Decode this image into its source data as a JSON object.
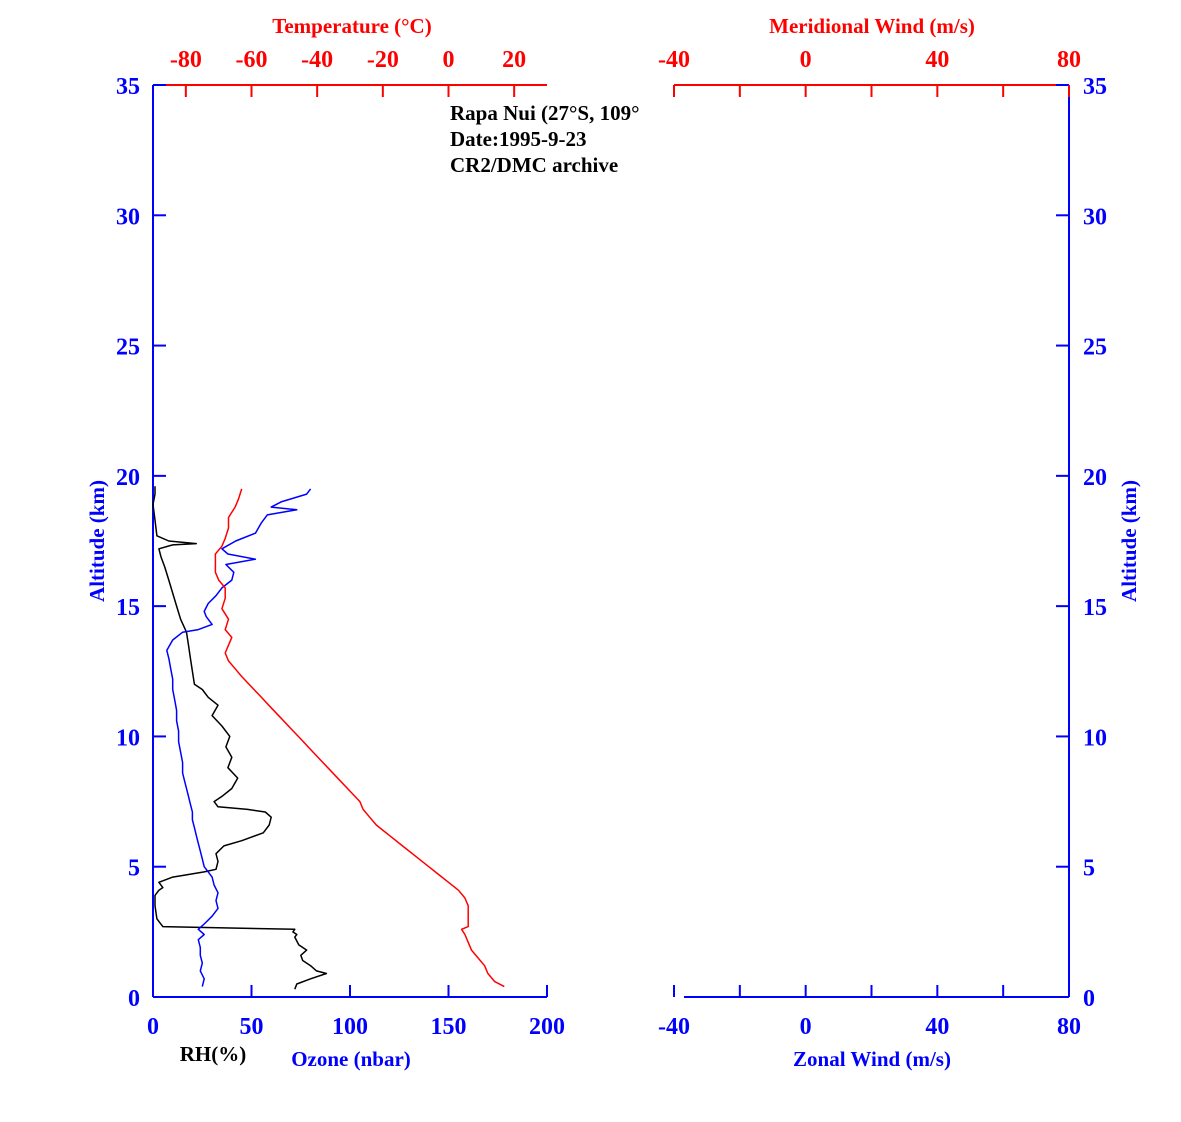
{
  "chart_data": [
    {
      "type": "line",
      "panel": "left",
      "annotation": [
        "Rapa Nui (27°S, 109°",
        "Date:1995-9-23",
        "CR2/DMC archive"
      ],
      "y_axis": {
        "label": "Altitude (km)",
        "range": [
          0,
          35
        ],
        "ticks": [
          0,
          5,
          10,
          15,
          20,
          25,
          30,
          35
        ]
      },
      "x_bottom": {
        "label_rh": "RH(%)",
        "label_ozone": "Ozone (nbar)",
        "range": [
          0,
          200
        ],
        "ticks": [
          0,
          50,
          100,
          150,
          200
        ]
      },
      "x_top": {
        "label": "Temperature (°C)",
        "range": [
          -90,
          30
        ],
        "ticks": [
          -80,
          -60,
          -40,
          -20,
          0,
          20
        ]
      },
      "series": [
        {
          "name": "RH(%)",
          "axis": "bottom",
          "color": "#000000",
          "points": [
            [
              72,
              0.3
            ],
            [
              73,
              0.5
            ],
            [
              80,
              0.7
            ],
            [
              88,
              0.9
            ],
            [
              83,
              1.0
            ],
            [
              80,
              1.2
            ],
            [
              76,
              1.4
            ],
            [
              75,
              1.6
            ],
            [
              78,
              1.8
            ],
            [
              74,
              2.0
            ],
            [
              72,
              2.3
            ],
            [
              73,
              2.4
            ],
            [
              71,
              2.5
            ],
            [
              72,
              2.6
            ],
            [
              36,
              2.65
            ],
            [
              5,
              2.7
            ],
            [
              2,
              3.0
            ],
            [
              1,
              3.5
            ],
            [
              1,
              3.9
            ],
            [
              3,
              4.1
            ],
            [
              5,
              4.2
            ],
            [
              3,
              4.4
            ],
            [
              10,
              4.6
            ],
            [
              18,
              4.7
            ],
            [
              26,
              4.8
            ],
            [
              32,
              4.9
            ],
            [
              33,
              5.2
            ],
            [
              32,
              5.5
            ],
            [
              36,
              5.8
            ],
            [
              45,
              6.0
            ],
            [
              56,
              6.3
            ],
            [
              59,
              6.6
            ],
            [
              60,
              6.9
            ],
            [
              57,
              7.1
            ],
            [
              48,
              7.2
            ],
            [
              33,
              7.3
            ],
            [
              31,
              7.5
            ],
            [
              35,
              7.7
            ],
            [
              40,
              8.0
            ],
            [
              43,
              8.4
            ],
            [
              38,
              8.8
            ],
            [
              40,
              9.2
            ],
            [
              37,
              9.6
            ],
            [
              39,
              10.0
            ],
            [
              35,
              10.4
            ],
            [
              30,
              10.8
            ],
            [
              33,
              11.2
            ],
            [
              28,
              11.5
            ],
            [
              25,
              11.8
            ],
            [
              21,
              12.0
            ],
            [
              20,
              12.5
            ],
            [
              19,
              13.0
            ],
            [
              18,
              13.5
            ],
            [
              17,
              14.0
            ],
            [
              14,
              14.5
            ],
            [
              12,
              15.0
            ],
            [
              10,
              15.5
            ],
            [
              8,
              16.0
            ],
            [
              6,
              16.5
            ],
            [
              4,
              16.9
            ],
            [
              3,
              17.2
            ],
            [
              10,
              17.35
            ],
            [
              22,
              17.4
            ],
            [
              8,
              17.5
            ],
            [
              2,
              17.7
            ],
            [
              1,
              18.3
            ],
            [
              0,
              18.9
            ],
            [
              1,
              19.3
            ],
            [
              1,
              19.6
            ]
          ]
        },
        {
          "name": "Ozone (nbar)",
          "axis": "bottom",
          "color": "#0000ff",
          "points": [
            [
              25,
              0.4
            ],
            [
              26,
              0.7
            ],
            [
              24,
              1.0
            ],
            [
              25,
              1.3
            ],
            [
              24,
              1.6
            ],
            [
              24,
              1.9
            ],
            [
              23,
              2.2
            ],
            [
              26,
              2.4
            ],
            [
              23,
              2.6
            ],
            [
              26,
              2.8
            ],
            [
              30,
              3.1
            ],
            [
              33,
              3.4
            ],
            [
              32,
              3.7
            ],
            [
              33,
              4.0
            ],
            [
              31,
              4.3
            ],
            [
              30,
              4.6
            ],
            [
              28,
              4.8
            ],
            [
              26,
              5.0
            ],
            [
              25,
              5.3
            ],
            [
              24,
              5.6
            ],
            [
              23,
              5.9
            ],
            [
              22,
              6.2
            ],
            [
              21,
              6.5
            ],
            [
              20,
              6.8
            ],
            [
              20,
              7.1
            ],
            [
              19,
              7.4
            ],
            [
              18,
              7.7
            ],
            [
              17,
              8.0
            ],
            [
              16,
              8.3
            ],
            [
              15,
              8.6
            ],
            [
              15,
              9.0
            ],
            [
              14,
              9.4
            ],
            [
              13,
              9.8
            ],
            [
              13,
              10.2
            ],
            [
              12,
              10.6
            ],
            [
              12,
              11.0
            ],
            [
              11,
              11.4
            ],
            [
              10,
              11.8
            ],
            [
              10,
              12.2
            ],
            [
              9,
              12.6
            ],
            [
              8,
              13.0
            ],
            [
              7,
              13.3
            ],
            [
              10,
              13.7
            ],
            [
              15,
              14.0
            ],
            [
              23,
              14.1
            ],
            [
              30,
              14.3
            ],
            [
              27,
              14.6
            ],
            [
              26,
              14.8
            ],
            [
              28,
              15.1
            ],
            [
              32,
              15.4
            ],
            [
              35,
              15.7
            ],
            [
              40,
              16.0
            ],
            [
              41,
              16.3
            ],
            [
              37,
              16.6
            ],
            [
              52,
              16.8
            ],
            [
              38,
              17.0
            ],
            [
              35,
              17.2
            ],
            [
              42,
              17.5
            ],
            [
              52,
              17.8
            ],
            [
              55,
              18.2
            ],
            [
              58,
              18.5
            ],
            [
              73,
              18.7
            ],
            [
              60,
              18.8
            ],
            [
              65,
              19.0
            ],
            [
              78,
              19.3
            ],
            [
              80,
              19.5
            ]
          ]
        },
        {
          "name": "Temperature (°C)",
          "axis": "top",
          "color": "#ff0000",
          "points": [
            [
              17,
              0.4
            ],
            [
              14,
              0.6
            ],
            [
              12,
              0.9
            ],
            [
              11,
              1.2
            ],
            [
              9,
              1.5
            ],
            [
              7,
              1.8
            ],
            [
              6,
              2.1
            ],
            [
              5,
              2.4
            ],
            [
              4,
              2.6
            ],
            [
              6,
              2.7
            ],
            [
              6,
              3.1
            ],
            [
              6,
              3.5
            ],
            [
              5,
              3.8
            ],
            [
              3,
              4.1
            ],
            [
              0,
              4.4
            ],
            [
              -3,
              4.7
            ],
            [
              -6,
              5.0
            ],
            [
              -10,
              5.4
            ],
            [
              -14,
              5.8
            ],
            [
              -18,
              6.2
            ],
            [
              -22,
              6.6
            ],
            [
              -24,
              6.9
            ],
            [
              -26,
              7.2
            ],
            [
              -27,
              7.5
            ],
            [
              -30,
              7.9
            ],
            [
              -33,
              8.3
            ],
            [
              -36,
              8.7
            ],
            [
              -39,
              9.1
            ],
            [
              -42,
              9.5
            ],
            [
              -45,
              9.9
            ],
            [
              -48,
              10.3
            ],
            [
              -51,
              10.7
            ],
            [
              -54,
              11.1
            ],
            [
              -57,
              11.5
            ],
            [
              -60,
              11.9
            ],
            [
              -63,
              12.3
            ],
            [
              -65,
              12.6
            ],
            [
              -67,
              12.9
            ],
            [
              -68,
              13.2
            ],
            [
              -67,
              13.5
            ],
            [
              -66,
              13.8
            ],
            [
              -68,
              14.1
            ],
            [
              -67,
              14.5
            ],
            [
              -69,
              14.9
            ],
            [
              -68,
              15.3
            ],
            [
              -68,
              15.7
            ],
            [
              -70,
              16.0
            ],
            [
              -71,
              16.3
            ],
            [
              -71,
              16.7
            ],
            [
              -71,
              17.0
            ],
            [
              -69,
              17.3
            ],
            [
              -68,
              17.6
            ],
            [
              -67,
              18.0
            ],
            [
              -67,
              18.4
            ],
            [
              -65,
              18.8
            ],
            [
              -64,
              19.1
            ],
            [
              -63,
              19.5
            ]
          ]
        }
      ]
    },
    {
      "type": "line",
      "panel": "right",
      "y_axis": {
        "label": "Altitude (km)",
        "range": [
          0,
          35
        ],
        "ticks": [
          0,
          5,
          10,
          15,
          20,
          25,
          30,
          35
        ]
      },
      "x_bottom": {
        "label": "Zonal Wind (m/s)",
        "range": [
          -40,
          80
        ],
        "ticks": [
          -40,
          0,
          40,
          80
        ]
      },
      "x_top": {
        "label": "Meridional Wind (m/s)",
        "range": [
          -40,
          80
        ],
        "ticks": [
          -40,
          0,
          40,
          80
        ]
      },
      "series": []
    }
  ]
}
